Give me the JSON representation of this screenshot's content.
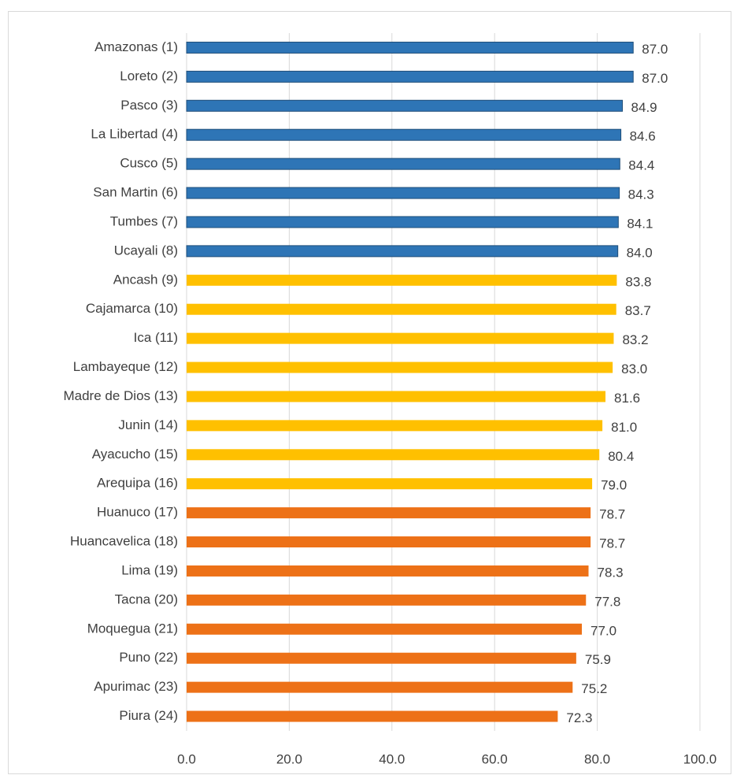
{
  "chart_data": {
    "type": "hbar",
    "categories": [
      "Amazonas (1)",
      "Loreto (2)",
      "Pasco (3)",
      "La Libertad (4)",
      "Cusco (5)",
      "San Martin (6)",
      "Tumbes (7)",
      "Ucayali (8)",
      "Ancash (9)",
      "Cajamarca (10)",
      "Ica (11)",
      "Lambayeque (12)",
      "Madre de Dios (13)",
      "Junin (14)",
      "Ayacucho (15)",
      "Arequipa (16)",
      "Huanuco (17)",
      "Huancavelica (18)",
      "Lima (19)",
      "Tacna (20)",
      "Moquegua (21)",
      "Puno (22)",
      "Apurimac (23)",
      "Piura (24)"
    ],
    "values": [
      87.0,
      87.0,
      84.9,
      84.6,
      84.4,
      84.3,
      84.1,
      84.0,
      83.8,
      83.7,
      83.2,
      83.0,
      81.6,
      81.0,
      80.4,
      79.0,
      78.7,
      78.7,
      78.3,
      77.8,
      77.0,
      75.9,
      75.2,
      72.3
    ],
    "value_labels": [
      "87.0",
      "87.0",
      "84.9",
      "84.6",
      "84.4",
      "84.3",
      "84.1",
      "84.0",
      "83.8",
      "83.7",
      "83.2",
      "83.0",
      "81.6",
      "81.0",
      "80.4",
      "79.0",
      "78.7",
      "78.7",
      "78.3",
      "77.8",
      "77.0",
      "75.9",
      "75.2",
      "72.3"
    ],
    "colors": [
      "#2e75b6",
      "#2e75b6",
      "#2e75b6",
      "#2e75b6",
      "#2e75b6",
      "#2e75b6",
      "#2e75b6",
      "#2e75b6",
      "#ffc000",
      "#ffc000",
      "#ffc000",
      "#ffc000",
      "#ffc000",
      "#ffc000",
      "#ffc000",
      "#ffc000",
      "#ed7117",
      "#ed7117",
      "#ed7117",
      "#ed7117",
      "#ed7117",
      "#ed7117",
      "#ed7117",
      "#ed7117"
    ],
    "xlim": [
      0,
      100
    ],
    "xticks": [
      {
        "value": 0,
        "label": "0.0"
      },
      {
        "value": 20,
        "label": "20.0"
      },
      {
        "value": 40,
        "label": "40.0"
      },
      {
        "value": 60,
        "label": "60.0"
      },
      {
        "value": 80,
        "label": "80.0"
      },
      {
        "value": 100,
        "label": "100.0"
      }
    ],
    "grid": true
  }
}
